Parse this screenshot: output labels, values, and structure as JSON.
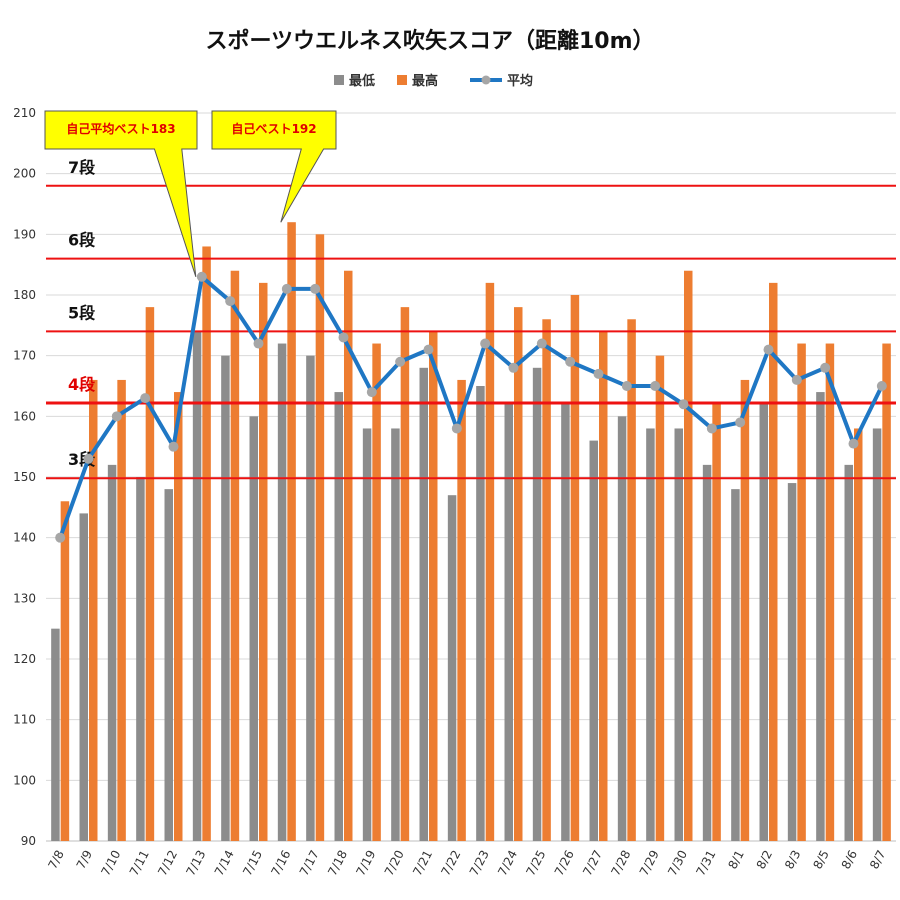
{
  "chart_data": {
    "type": "bar",
    "title": "スポーツウエルネス吹矢スコア（距離10m）",
    "categories": [
      "7/8",
      "7/9",
      "7/10",
      "7/11",
      "7/12",
      "7/13",
      "7/14",
      "7/15",
      "7/16",
      "7/17",
      "7/18",
      "7/19",
      "7/20",
      "7/21",
      "7/22",
      "7/23",
      "7/24",
      "7/25",
      "7/26",
      "7/27",
      "7/28",
      "7/29",
      "7/30",
      "7/31",
      "8/1",
      "8/2",
      "8/3",
      "8/5",
      "8/6",
      "8/7"
    ],
    "series": [
      {
        "name": "最低",
        "type": "bar",
        "color": "#8c8c8c",
        "values": [
          125,
          144,
          152,
          150,
          148,
          174,
          170,
          160,
          172,
          170,
          164,
          158,
          158,
          168,
          147,
          165,
          162,
          168,
          162,
          156,
          160,
          158,
          158,
          152,
          148,
          162,
          149,
          164,
          152,
          158
        ]
      },
      {
        "name": "最高",
        "type": "bar",
        "color": "#ed7d31",
        "values": [
          146,
          166,
          166,
          178,
          164,
          188,
          184,
          182,
          192,
          190,
          184,
          172,
          178,
          174,
          166,
          182,
          178,
          176,
          180,
          174,
          176,
          170,
          184,
          162,
          166,
          182,
          172,
          172,
          158,
          172
        ]
      },
      {
        "name": "平均",
        "type": "line",
        "color": "#1f77c4",
        "marker_color": "#a6a6a6",
        "values": [
          140,
          153,
          160,
          163,
          155,
          183,
          179,
          172,
          181,
          181,
          173,
          164,
          169,
          171,
          158,
          172,
          168,
          172,
          169,
          167,
          165,
          165,
          162,
          158,
          159,
          171,
          166,
          168,
          155.5,
          165
        ]
      }
    ],
    "ylim": [
      90,
      210
    ],
    "yticks": [
      90,
      100,
      110,
      120,
      130,
      140,
      150,
      160,
      170,
      180,
      190,
      200,
      210
    ],
    "legend_position": "top",
    "rank_lines": [
      {
        "label": "3段",
        "value": 149.8,
        "red_label": false
      },
      {
        "label": "4段",
        "value": 162.2,
        "red_label": true
      },
      {
        "label": "5段",
        "value": 174,
        "red_label": false
      },
      {
        "label": "6段",
        "value": 186,
        "red_label": false
      },
      {
        "label": "7段",
        "value": 198,
        "red_label": false
      }
    ],
    "rank_line_color": "#ee1111",
    "annotations": [
      {
        "text": "自己平均ベスト183",
        "target_category": "7/13",
        "target_value": 183
      },
      {
        "text": "自己ベスト192",
        "target_category": "7/16",
        "target_value": 192
      }
    ],
    "callout_fill": "#ffff00"
  }
}
